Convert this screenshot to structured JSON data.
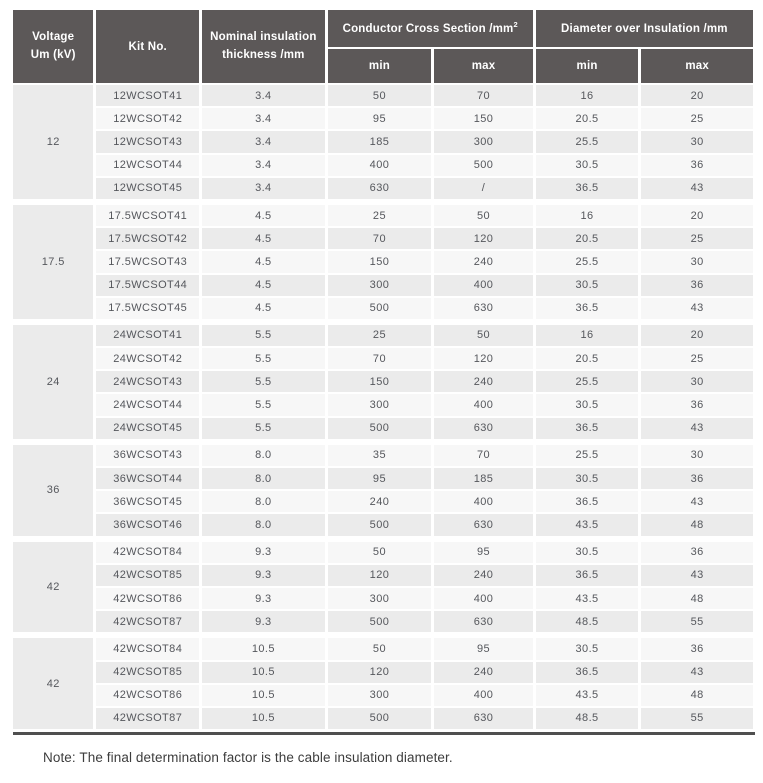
{
  "page": {
    "note": "Note: The final determination factor is the cable insulation diameter."
  },
  "table": {
    "header": {
      "voltage_label": "Voltage\nUm (kV)",
      "kit_label": "Kit No.",
      "nominal_label": "Nominal insulation\nthickness /mm",
      "conductor_group_label": "Conductor Cross Section /mm",
      "conductor_group_sup": "2",
      "diameter_group_label": "Diameter over Insulation /mm",
      "min_label": "min",
      "max_label": "max"
    },
    "column_keys": [
      "kit_no",
      "nominal_thickness_mm",
      "ccs_min_mm2",
      "ccs_max_mm2",
      "doi_min_mm",
      "doi_max_mm"
    ],
    "groups": [
      {
        "voltage_um_kv": "12",
        "rows": [
          [
            "12WCSOT41",
            "3.4",
            "50",
            "70",
            "16",
            "20"
          ],
          [
            "12WCSOT42",
            "3.4",
            "95",
            "150",
            "20.5",
            "25"
          ],
          [
            "12WCSOT43",
            "3.4",
            "185",
            "300",
            "25.5",
            "30"
          ],
          [
            "12WCSOT44",
            "3.4",
            "400",
            "500",
            "30.5",
            "36"
          ],
          [
            "12WCSOT45",
            "3.4",
            "630",
            "/",
            "36.5",
            "43"
          ]
        ]
      },
      {
        "voltage_um_kv": "17.5",
        "rows": [
          [
            "17.5WCSOT41",
            "4.5",
            "25",
            "50",
            "16",
            "20"
          ],
          [
            "17.5WCSOT42",
            "4.5",
            "70",
            "120",
            "20.5",
            "25"
          ],
          [
            "17.5WCSOT43",
            "4.5",
            "150",
            "240",
            "25.5",
            "30"
          ],
          [
            "17.5WCSOT44",
            "4.5",
            "300",
            "400",
            "30.5",
            "36"
          ],
          [
            "17.5WCSOT45",
            "4.5",
            "500",
            "630",
            "36.5",
            "43"
          ]
        ]
      },
      {
        "voltage_um_kv": "24",
        "rows": [
          [
            "24WCSOT41",
            "5.5",
            "25",
            "50",
            "16",
            "20"
          ],
          [
            "24WCSOT42",
            "5.5",
            "70",
            "120",
            "20.5",
            "25"
          ],
          [
            "24WCSOT43",
            "5.5",
            "150",
            "240",
            "25.5",
            "30"
          ],
          [
            "24WCSOT44",
            "5.5",
            "300",
            "400",
            "30.5",
            "36"
          ],
          [
            "24WCSOT45",
            "5.5",
            "500",
            "630",
            "36.5",
            "43"
          ]
        ]
      },
      {
        "voltage_um_kv": "36",
        "rows": [
          [
            "36WCSOT43",
            "8.0",
            "35",
            "70",
            "25.5",
            "30"
          ],
          [
            "36WCSOT44",
            "8.0",
            "95",
            "185",
            "30.5",
            "36"
          ],
          [
            "36WCSOT45",
            "8.0",
            "240",
            "400",
            "36.5",
            "43"
          ],
          [
            "36WCSOT46",
            "8.0",
            "500",
            "630",
            "43.5",
            "48"
          ]
        ]
      },
      {
        "voltage_um_kv": "42",
        "rows": [
          [
            "42WCSOT84",
            "9.3",
            "50",
            "95",
            "30.5",
            "36"
          ],
          [
            "42WCSOT85",
            "9.3",
            "120",
            "240",
            "36.5",
            "43"
          ],
          [
            "42WCSOT86",
            "9.3",
            "300",
            "400",
            "43.5",
            "48"
          ],
          [
            "42WCSOT87",
            "9.3",
            "500",
            "630",
            "48.5",
            "55"
          ]
        ]
      },
      {
        "voltage_um_kv": "42",
        "rows": [
          [
            "42WCSOT84",
            "10.5",
            "50",
            "95",
            "30.5",
            "36"
          ],
          [
            "42WCSOT85",
            "10.5",
            "120",
            "240",
            "36.5",
            "43"
          ],
          [
            "42WCSOT86",
            "10.5",
            "300",
            "400",
            "43.5",
            "48"
          ],
          [
            "42WCSOT87",
            "10.5",
            "500",
            "630",
            "48.5",
            "55"
          ]
        ]
      }
    ]
  },
  "colors": {
    "header_bg": "#5c5858",
    "row_shade_dark": "#ebebeb",
    "row_shade_light": "#f7f7f7",
    "header_text": "#ffffff",
    "body_text": "#55575c",
    "note_text": "#3d3d3d",
    "bottom_rule": "#4f4f4f",
    "page_bg": "#ffffff"
  }
}
